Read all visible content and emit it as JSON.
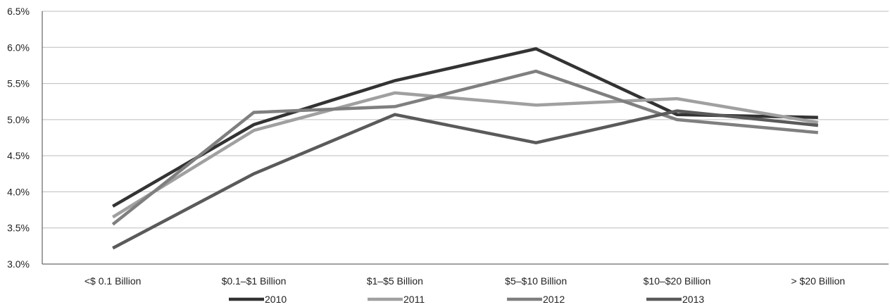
{
  "chart_data": {
    "type": "line",
    "title": "",
    "xlabel": "",
    "ylabel": "",
    "categories": [
      "<$ 0.1 Billion",
      "$0.1–$1 Billion",
      "$1–$5 Billion",
      "$5–$10 Billion",
      "$10–$20 Billion",
      "> $20 Billion"
    ],
    "ylim": [
      3.0,
      6.5
    ],
    "yticks": [
      3.0,
      3.5,
      4.0,
      4.5,
      5.0,
      5.5,
      6.0,
      6.5
    ],
    "ytick_labels": [
      "3.0%",
      "3.5%",
      "4.0%",
      "4.5%",
      "5.0%",
      "5.5%",
      "6.0%",
      "6.5%"
    ],
    "grid": true,
    "legend_position": "bottom",
    "series": [
      {
        "name": "2010",
        "color": "#333333",
        "values": [
          3.8,
          4.93,
          5.54,
          5.98,
          5.07,
          5.03
        ]
      },
      {
        "name": "2011",
        "color": "#a0a0a0",
        "values": [
          3.65,
          4.85,
          5.37,
          5.2,
          5.29,
          4.96
        ]
      },
      {
        "name": "2012",
        "color": "#7f7f7f",
        "values": [
          3.55,
          5.1,
          5.18,
          5.67,
          5.0,
          4.82
        ]
      },
      {
        "name": "2013",
        "color": "#5a5a5a",
        "values": [
          3.22,
          4.25,
          5.07,
          4.68,
          5.12,
          4.92
        ]
      }
    ]
  }
}
